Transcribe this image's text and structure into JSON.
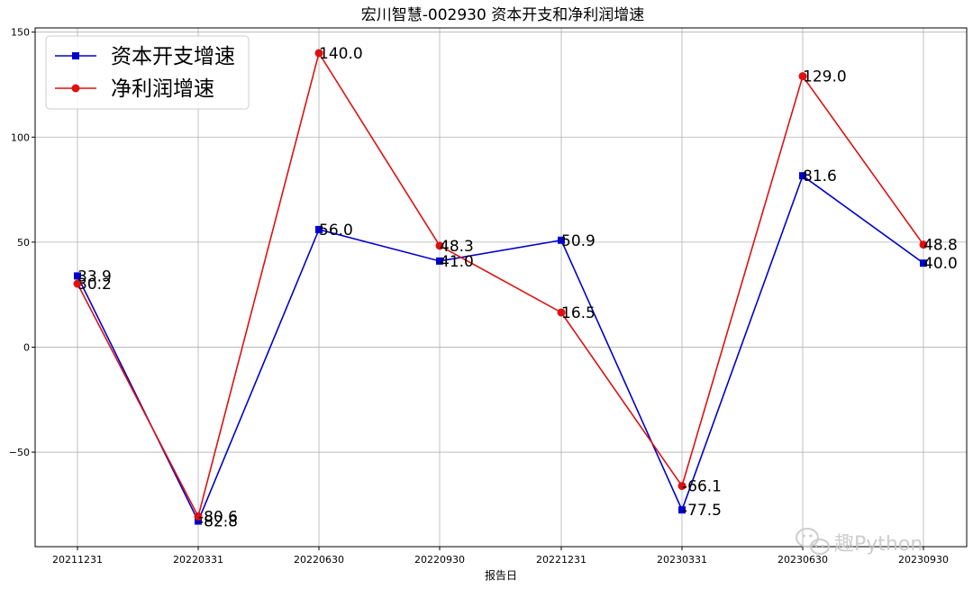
{
  "chart_data": {
    "type": "line",
    "title": "宏川智慧-002930 资本开支和净利润增速",
    "xlabel": "报告日",
    "ylabel": "",
    "categories": [
      "20211231",
      "20220331",
      "20220630",
      "20220930",
      "20221231",
      "20230331",
      "20230630",
      "20230930"
    ],
    "ylim": [
      -95,
      152
    ],
    "yticks": [
      -50,
      0,
      50,
      100,
      150
    ],
    "ytick_labels": [
      "−50",
      "0",
      "50",
      "100",
      "150"
    ],
    "grid": true,
    "legend_position": "top-left",
    "series": [
      {
        "name": "资本开支增速",
        "color": "#0000cc",
        "marker": "square",
        "values": [
          33.9,
          -82.8,
          56.0,
          41.0,
          50.9,
          -77.5,
          81.6,
          40.0
        ],
        "labels": [
          "33.9",
          "-82.8",
          "56.0",
          "41.0",
          "50.9",
          "-77.5",
          "81.6",
          "40.0"
        ]
      },
      {
        "name": "净利润增速",
        "color": "#dd1111",
        "marker": "circle",
        "values": [
          30.2,
          -80.6,
          140.0,
          48.3,
          16.5,
          -66.1,
          129.0,
          48.8
        ],
        "labels": [
          "30.2",
          "-80.6",
          "140.0",
          "48.3",
          "16.5",
          "-66.1",
          "129.0",
          "48.8"
        ]
      }
    ]
  },
  "watermark": {
    "text": "趣Python",
    "icon": "wechat-icon"
  }
}
